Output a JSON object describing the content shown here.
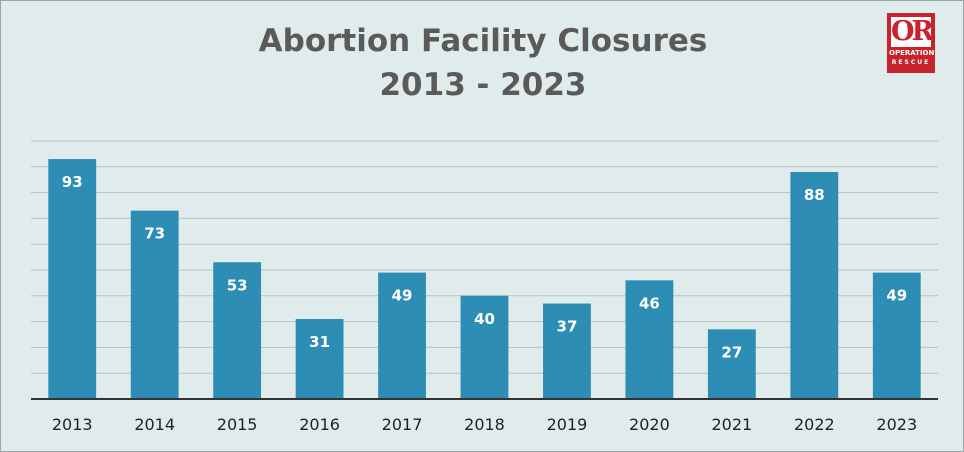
{
  "header": {
    "title_line1": "Abortion Facility Closures",
    "title_line2": "2013 - 2023"
  },
  "logo": {
    "mark": "OR",
    "line1": "OPERATION",
    "line2": "RESCUE",
    "color": "#c8232c"
  },
  "colors": {
    "bar": "#2e8db5",
    "background": "#e0ecec",
    "gridline": "#b7c0c1",
    "axis": "#333333"
  },
  "chart_data": {
    "type": "bar",
    "title": "Abortion Facility Closures 2013 - 2023",
    "categories": [
      "2013",
      "2014",
      "2015",
      "2016",
      "2017",
      "2018",
      "2019",
      "2020",
      "2021",
      "2022",
      "2023"
    ],
    "values": [
      93,
      73,
      53,
      31,
      49,
      40,
      37,
      46,
      27,
      88,
      49
    ],
    "data_labels": [
      "93",
      "73",
      "53",
      "31",
      "49",
      "40",
      "37",
      "46",
      "27",
      "88",
      "49"
    ],
    "ylim": [
      0,
      100
    ],
    "grid": true,
    "grid_step": 10,
    "legend": "none"
  }
}
